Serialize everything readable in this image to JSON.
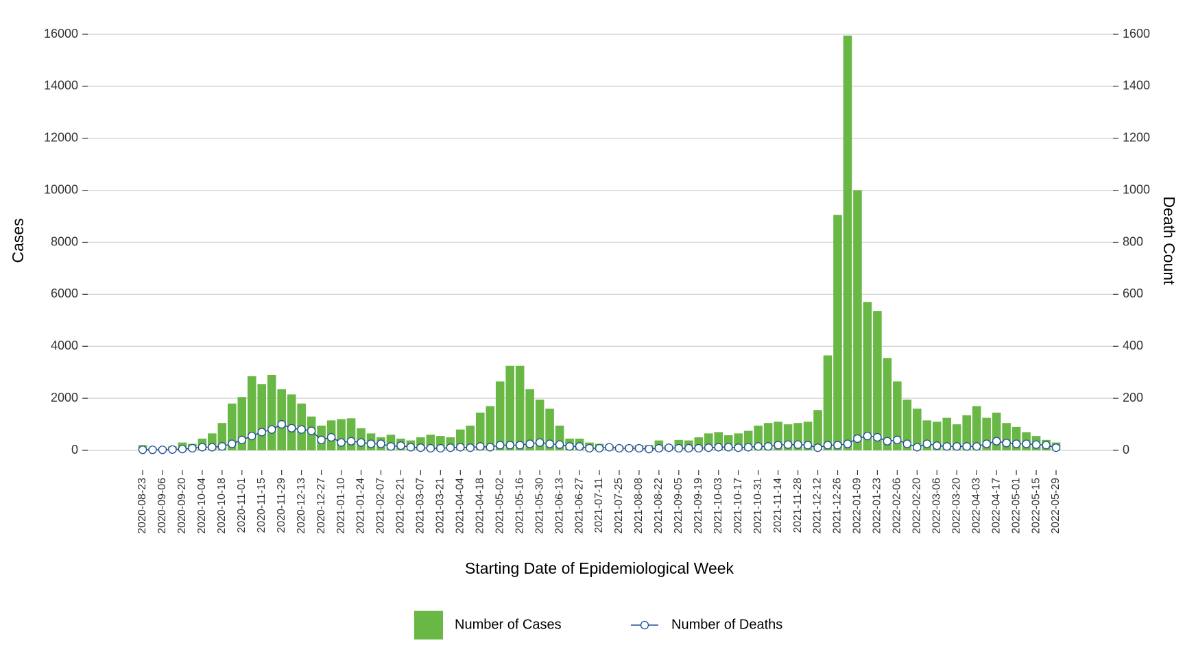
{
  "chart_data": {
    "type": "bar",
    "x_label": "Starting Date of Epidemiological Week",
    "y_label": "Cases",
    "y2_label": "Death Count",
    "categories": [
      "2020-08-23",
      null,
      "2020-09-06",
      null,
      "2020-09-20",
      null,
      "2020-10-04",
      null,
      "2020-10-18",
      null,
      "2020-11-01",
      null,
      "2020-11-15",
      null,
      "2020-11-29",
      null,
      "2020-12-13",
      null,
      "2020-12-27",
      null,
      "2021-01-10",
      null,
      "2021-01-24",
      null,
      "2021-02-07",
      null,
      "2021-02-21",
      null,
      "2021-03-07",
      null,
      "2021-03-21",
      null,
      "2021-04-04",
      null,
      "2021-04-18",
      null,
      "2021-05-02",
      null,
      "2021-05-16",
      null,
      "2021-05-30",
      null,
      "2021-06-13",
      null,
      "2021-06-27",
      null,
      "2021-07-11",
      null,
      "2021-07-25",
      null,
      "2021-08-08",
      null,
      "2021-08-22",
      null,
      "2021-09-05",
      null,
      "2021-09-19",
      null,
      "2021-10-03",
      null,
      "2021-10-17",
      null,
      "2021-10-31",
      null,
      "2021-11-14",
      null,
      "2021-11-28",
      null,
      "2021-12-12",
      null,
      "2021-12-26",
      null,
      "2022-01-09",
      null,
      "2022-01-23",
      null,
      "2022-02-06",
      null,
      "2022-02-20",
      null,
      "2022-03-06",
      null,
      "2022-03-20",
      null,
      "2022-04-03",
      null,
      "2022-04-17",
      null,
      "2022-05-01",
      null,
      "2022-05-15",
      null,
      "2022-05-29"
    ],
    "series": [
      {
        "name": "Number of Cases",
        "type": "bar",
        "color": "#69b845",
        "axis": "y",
        "values": [
          200,
          100,
          100,
          150,
          300,
          250,
          450,
          650,
          1050,
          1800,
          2050,
          2850,
          2550,
          2900,
          2350,
          2150,
          1800,
          1300,
          950,
          1150,
          1200,
          1230,
          850,
          650,
          500,
          600,
          450,
          380,
          500,
          600,
          550,
          500,
          800,
          950,
          1450,
          1700,
          2650,
          3250,
          3250,
          2350,
          1950,
          1600,
          950,
          450,
          450,
          300,
          250,
          200,
          150,
          180,
          200,
          200,
          380,
          200,
          400,
          380,
          500,
          650,
          700,
          580,
          650,
          750,
          950,
          1050,
          1100,
          1000,
          1050,
          1100,
          1550,
          3650,
          9050,
          15950,
          10000,
          5700,
          5350,
          3550,
          2650,
          1950,
          1600,
          1150,
          1100,
          1250,
          1000,
          1350,
          1700,
          1250,
          1450,
          1050,
          900,
          700,
          550,
          400,
          300
        ]
      },
      {
        "name": "Number of Deaths",
        "type": "line",
        "color": "#1f4e9c",
        "axis": "y2",
        "values": [
          2,
          2,
          2,
          3,
          5,
          8,
          12,
          12,
          15,
          25,
          40,
          55,
          70,
          80,
          100,
          85,
          80,
          75,
          40,
          50,
          30,
          35,
          30,
          25,
          25,
          15,
          18,
          12,
          10,
          8,
          8,
          10,
          12,
          10,
          15,
          12,
          20,
          20,
          20,
          25,
          30,
          25,
          22,
          15,
          15,
          8,
          8,
          12,
          8,
          8,
          8,
          5,
          8,
          10,
          8,
          8,
          8,
          10,
          12,
          12,
          10,
          12,
          15,
          15,
          20,
          22,
          22,
          20,
          10,
          20,
          20,
          25,
          45,
          55,
          50,
          35,
          40,
          25,
          12,
          25,
          18,
          15,
          15,
          15,
          15,
          25,
          35,
          28,
          25,
          25,
          22,
          20,
          10
        ]
      }
    ],
    "ylim": [
      0,
      16000
    ],
    "yticks": [
      0,
      2000,
      4000,
      6000,
      8000,
      10000,
      12000,
      14000,
      16000
    ],
    "y2lim": [
      0,
      1600
    ],
    "y2ticks": [
      0,
      200,
      400,
      600,
      800,
      1000,
      1200,
      1400,
      1600
    ],
    "grid": true,
    "legend": "bottom"
  }
}
